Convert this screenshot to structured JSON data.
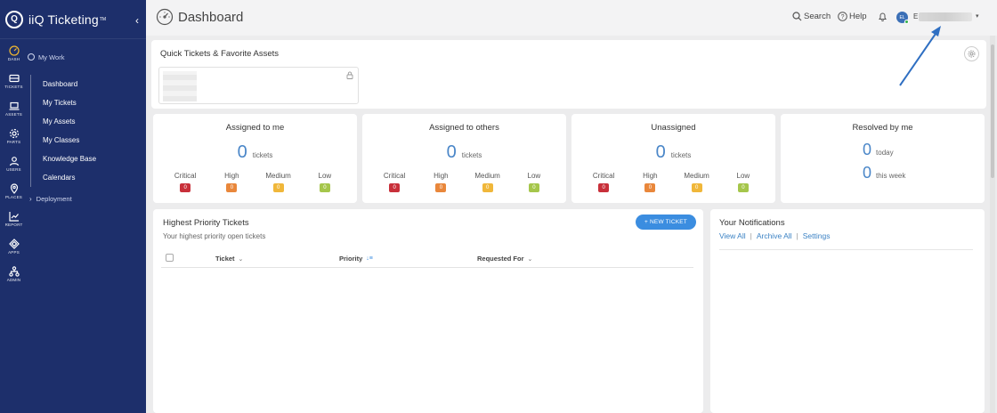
{
  "brand": {
    "name": "iiQ Ticketing",
    "tm": "TM",
    "logo_letter": "Q"
  },
  "rail": [
    {
      "label": "DASH",
      "icon": "dash-icon"
    },
    {
      "label": "TICKETS",
      "icon": "tickets-icon"
    },
    {
      "label": "ASSETS",
      "icon": "laptop-icon"
    },
    {
      "label": "PARTS",
      "icon": "gear-icon"
    },
    {
      "label": "USERS",
      "icon": "user-icon"
    },
    {
      "label": "PLACES",
      "icon": "pin-icon"
    },
    {
      "label": "REPORT",
      "icon": "chart-icon"
    },
    {
      "label": "APPS",
      "icon": "apps-icon"
    },
    {
      "label": "ADMIN",
      "icon": "org-icon"
    }
  ],
  "menu": {
    "head": "My Work",
    "items": [
      "Dashboard",
      "My Tickets",
      "My Assets",
      "My Classes",
      "Knowledge Base",
      "Calendars"
    ],
    "foot": "Deployment"
  },
  "header": {
    "title": "Dashboard",
    "search": "Search",
    "help": "Help",
    "user_initials": "EL",
    "user_initial_visible": "E"
  },
  "quick": {
    "title": "Quick Tickets & Favorite Assets"
  },
  "stats": [
    {
      "title": "Assigned to me",
      "count": "0",
      "unit": "tickets",
      "priorities": [
        {
          "label": "Critical",
          "value": "0"
        },
        {
          "label": "High",
          "value": "0"
        },
        {
          "label": "Medium",
          "value": "0"
        },
        {
          "label": "Low",
          "value": "0"
        }
      ]
    },
    {
      "title": "Assigned to others",
      "count": "0",
      "unit": "tickets",
      "priorities": [
        {
          "label": "Critical",
          "value": "0"
        },
        {
          "label": "High",
          "value": "0"
        },
        {
          "label": "Medium",
          "value": "0"
        },
        {
          "label": "Low",
          "value": "0"
        }
      ]
    },
    {
      "title": "Unassigned",
      "count": "0",
      "unit": "tickets",
      "priorities": [
        {
          "label": "Critical",
          "value": "0"
        },
        {
          "label": "High",
          "value": "0"
        },
        {
          "label": "Medium",
          "value": "0"
        },
        {
          "label": "Low",
          "value": "0"
        }
      ]
    }
  ],
  "resolved": {
    "title": "Resolved by me",
    "today_count": "0",
    "today_label": "today",
    "week_count": "0",
    "week_label": "this week"
  },
  "priority_colors": {
    "Critical": "#c8303a",
    "High": "#e9873b",
    "Medium": "#f0b73a",
    "Low": "#a5c64b"
  },
  "highest": {
    "title": "Highest Priority Tickets",
    "subtitle": "Your highest priority open tickets",
    "new_ticket": "+ NEW TICKET",
    "columns": [
      "Ticket",
      "Priority",
      "Requested For"
    ]
  },
  "notifications": {
    "title": "Your Notifications",
    "links": [
      "View All",
      "Archive All",
      "Settings"
    ],
    "separator": "|"
  },
  "colors": {
    "sidebar": "#1d2f6b",
    "accent": "#3b8de0",
    "count": "#4a86c8"
  }
}
